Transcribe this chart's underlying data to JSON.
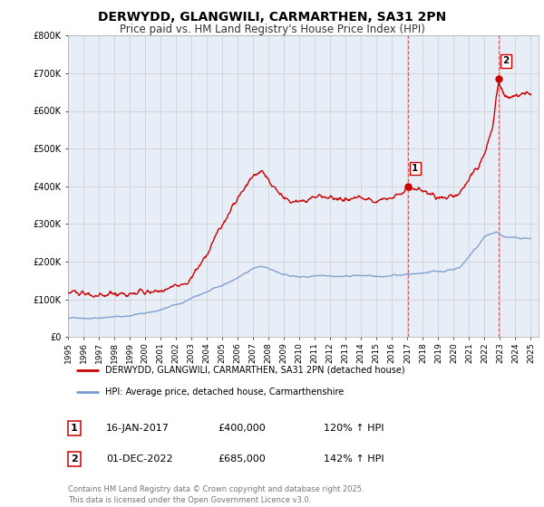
{
  "title": "DERWYDD, GLANGWILI, CARMARTHEN, SA31 2PN",
  "subtitle": "Price paid vs. HM Land Registry's House Price Index (HPI)",
  "title_fontsize": 10,
  "subtitle_fontsize": 8.5,
  "background_color": "#ffffff",
  "grid_color": "#cccccc",
  "plot_bg_color": "#e8eef8",
  "red_color": "#cc0000",
  "blue_color": "#7799cc",
  "marker1_date": 2017.04,
  "marker1_value": 400000,
  "marker2_date": 2022.92,
  "marker2_value": 685000,
  "vline1_date": 2017.04,
  "vline2_date": 2022.92,
  "legend_entries": [
    "DERWYDD, GLANGWILI, CARMARTHEN, SA31 2PN (detached house)",
    "HPI: Average price, detached house, Carmarthenshire"
  ],
  "annotation1_num": "1",
  "annotation1_date": "16-JAN-2017",
  "annotation1_price": "£400,000",
  "annotation1_hpi": "120% ↑ HPI",
  "annotation2_num": "2",
  "annotation2_date": "01-DEC-2022",
  "annotation2_price": "£685,000",
  "annotation2_hpi": "142% ↑ HPI",
  "footer": "Contains HM Land Registry data © Crown copyright and database right 2025.\nThis data is licensed under the Open Government Licence v3.0.",
  "ylim": [
    0,
    800000
  ],
  "xlim_start": 1995,
  "xlim_end": 2025.5,
  "ytick_labels": [
    "£0",
    "£100K",
    "£200K",
    "£300K",
    "£400K",
    "£500K",
    "£600K",
    "£700K",
    "£800K"
  ],
  "ytick_values": [
    0,
    100000,
    200000,
    300000,
    400000,
    500000,
    600000,
    700000,
    800000
  ]
}
